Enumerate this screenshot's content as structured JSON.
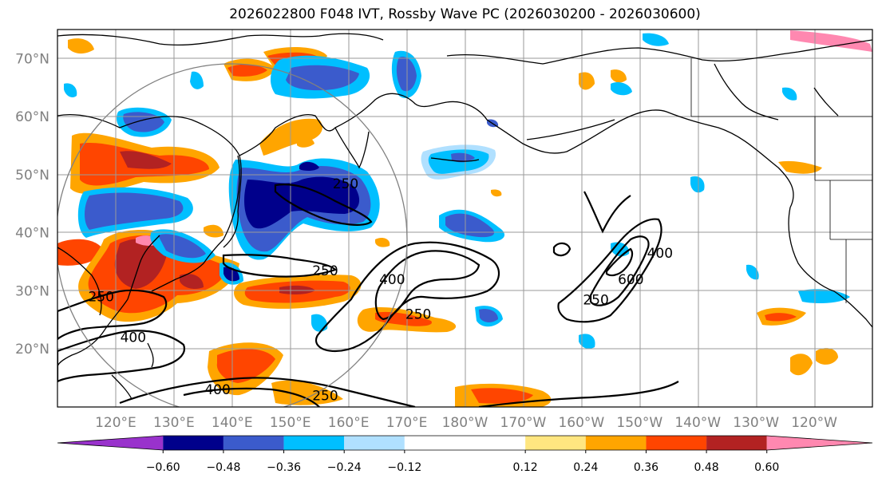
{
  "title": "2026022800 F048 IVT, Rossby Wave PC (2026030200 - 2026030600)",
  "chart_data": {
    "type": "map",
    "title": "2026022800 F048 IVT, Rossby Wave PC (2026030200 - 2026030600)",
    "lon_range": [
      110,
      250
    ],
    "lat_range": [
      10,
      75
    ],
    "xticks": [
      {
        "lon": 120,
        "label": "120°E"
      },
      {
        "lon": 130,
        "label": "130°E"
      },
      {
        "lon": 140,
        "label": "140°E"
      },
      {
        "lon": 150,
        "label": "150°E"
      },
      {
        "lon": 160,
        "label": "160°E"
      },
      {
        "lon": 170,
        "label": "170°E"
      },
      {
        "lon": 180,
        "label": "180°W"
      },
      {
        "lon": 190,
        "label": "170°W"
      },
      {
        "lon": 200,
        "label": "160°W"
      },
      {
        "lon": 210,
        "label": "150°W"
      },
      {
        "lon": 220,
        "label": "140°W"
      },
      {
        "lon": 230,
        "label": "130°W"
      },
      {
        "lon": 240,
        "label": "120°W"
      }
    ],
    "yticks": [
      {
        "lat": 20,
        "label": "20°N"
      },
      {
        "lat": 30,
        "label": "30°N"
      },
      {
        "lat": 40,
        "label": "40°N"
      },
      {
        "lat": 50,
        "label": "50°N"
      },
      {
        "lat": 60,
        "label": "60°N"
      },
      {
        "lat": 70,
        "label": "70°N"
      }
    ],
    "grid": true,
    "colorbar": {
      "levels": [
        -0.6,
        -0.48,
        -0.36,
        -0.24,
        -0.12,
        0.12,
        0.24,
        0.36,
        0.48,
        0.6
      ],
      "tick_labels": [
        "−0.60",
        "−0.48",
        "−0.36",
        "−0.24",
        "−0.12",
        "0.12",
        "0.24",
        "0.36",
        "0.48",
        "0.60"
      ],
      "colors": [
        "#9932cc",
        "#00008b",
        "#3b5bcc",
        "#00bfff",
        "#b0e0ff",
        "#ffffff",
        "#ffe680",
        "#ffa500",
        "#ff4500",
        "#b22222",
        "#ff88b0"
      ],
      "extend": "both"
    },
    "ivt_contour_levels": [
      250,
      400,
      600
    ],
    "contour_labels": [
      {
        "text": "250",
        "lon": 159.5,
        "lat": 48.5
      },
      {
        "text": "250",
        "lon": 156,
        "lat": 33.5
      },
      {
        "text": "400",
        "lon": 167.5,
        "lat": 32
      },
      {
        "text": "250",
        "lon": 172,
        "lat": 26
      },
      {
        "text": "250",
        "lon": 117.5,
        "lat": 29
      },
      {
        "text": "400",
        "lon": 123,
        "lat": 22
      },
      {
        "text": "400",
        "lon": 137.5,
        "lat": 13
      },
      {
        "text": "250",
        "lon": 156,
        "lat": 12
      },
      {
        "text": "250",
        "lon": 202.5,
        "lat": 28.5
      },
      {
        "text": "600",
        "lon": 208.5,
        "lat": 32
      },
      {
        "text": "400",
        "lon": 213.5,
        "lat": 36.5
      }
    ],
    "rossby_circle": {
      "center_lon": 140,
      "center_lat": 42,
      "radius_deg": 33
    }
  }
}
